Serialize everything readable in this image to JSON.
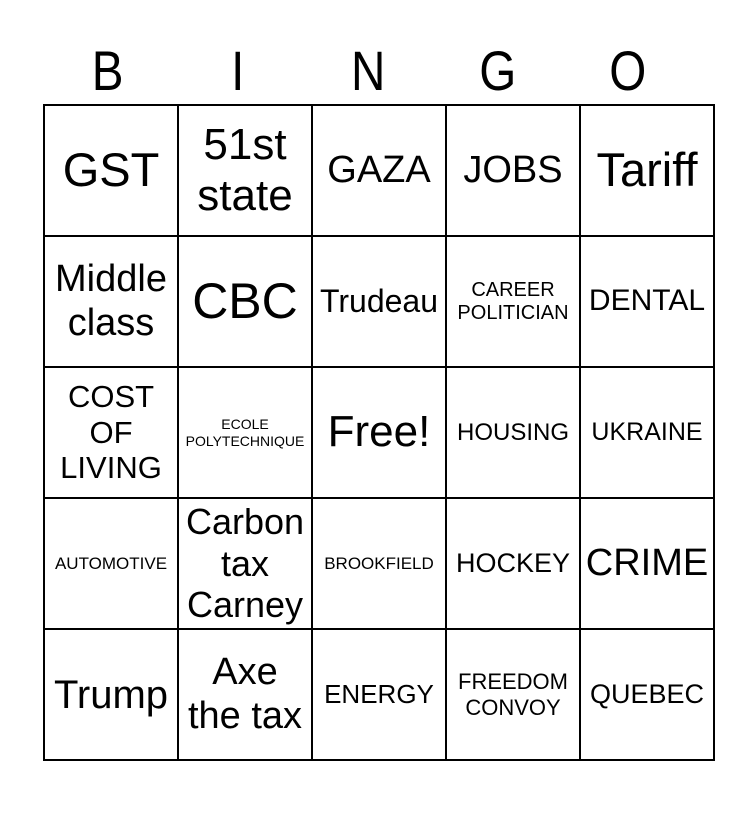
{
  "header": {
    "letters": [
      "B",
      "I",
      "N",
      "G",
      "O"
    ]
  },
  "grid": {
    "rows": [
      {
        "cells": [
          {
            "text": "GST",
            "font_size": 47
          },
          {
            "text": "51st\nstate",
            "font_size": 44
          },
          {
            "text": "GAZA",
            "font_size": 38
          },
          {
            "text": "JOBS",
            "font_size": 38
          },
          {
            "text": "Tariff",
            "font_size": 47
          }
        ]
      },
      {
        "cells": [
          {
            "text": "Middle\nclass",
            "font_size": 38
          },
          {
            "text": "CBC",
            "font_size": 50
          },
          {
            "text": "Trudeau",
            "font_size": 32
          },
          {
            "text": "CAREER\nPOLITICIAN",
            "font_size": 20
          },
          {
            "text": "DENTAL",
            "font_size": 30
          }
        ]
      },
      {
        "cells": [
          {
            "text": "COST\nOF\nLIVING",
            "font_size": 31
          },
          {
            "text": "ECOLE\nPOLYTECHNIQUE",
            "font_size": 14
          },
          {
            "text": "Free!",
            "font_size": 44
          },
          {
            "text": "HOUSING",
            "font_size": 24
          },
          {
            "text": "UKRAINE",
            "font_size": 25
          }
        ]
      },
      {
        "cells": [
          {
            "text": "AUTOMOTIVE",
            "font_size": 17
          },
          {
            "text": "Carbon\ntax\nCarney",
            "font_size": 36
          },
          {
            "text": "BROOKFIELD",
            "font_size": 17
          },
          {
            "text": "HOCKEY",
            "font_size": 27
          },
          {
            "text": "CRIME",
            "font_size": 38
          }
        ]
      },
      {
        "cells": [
          {
            "text": "Trump",
            "font_size": 40
          },
          {
            "text": "Axe\nthe tax",
            "font_size": 38
          },
          {
            "text": "ENERGY",
            "font_size": 26
          },
          {
            "text": "FREEDOM\nCONVOY",
            "font_size": 22
          },
          {
            "text": "QUEBEC",
            "font_size": 27
          }
        ]
      }
    ]
  },
  "colors": {
    "background": "#ffffff",
    "text": "#000000",
    "border": "#000000"
  }
}
